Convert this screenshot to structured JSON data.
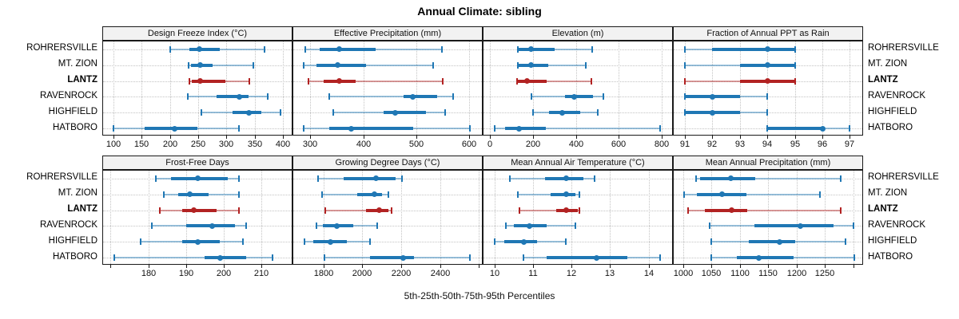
{
  "title": "Annual Climate: sibling",
  "caption": "5th-25th-50th-75th-95th Percentiles",
  "colors": {
    "normal": "#1F77B4",
    "highlight": "#B22222",
    "strip_bg": "#F2F2F2",
    "panel_border": "#1A1A1A",
    "grid": "#C3C3C3"
  },
  "sites": [
    "ROHRERSVILLE",
    "MT. ZION",
    "LANTZ",
    "RAVENROCK",
    "HIGHFIELD",
    "HATBORO"
  ],
  "highlight_site": "LANTZ",
  "chart_data": {
    "type": "dot-interval-trellis",
    "layout": {
      "rows": 2,
      "cols": 4,
      "grid": "dotted",
      "legend": "none"
    },
    "percentiles": [
      5,
      25,
      50,
      75,
      95
    ],
    "categories": [
      "ROHRERSVILLE",
      "MT. ZION",
      "LANTZ",
      "RAVENROCK",
      "HIGHFIELD",
      "HATBORO"
    ],
    "panels": [
      {
        "row": 0,
        "title": "Design Freeze Index (°C)",
        "xlim": [
          82,
          415
        ],
        "ticks": [
          100,
          150,
          200,
          250,
          300,
          350,
          400
        ],
        "tick_labels": [
          "100",
          "150",
          "200",
          "250",
          "300",
          "350",
          "400"
        ],
        "values": [
          [
            200,
            235,
            252,
            288,
            367
          ],
          [
            233,
            237,
            254,
            275,
            347
          ],
          [
            235,
            239,
            253,
            298,
            340
          ],
          [
            232,
            283,
            322,
            339,
            372
          ],
          [
            255,
            311,
            340,
            362,
            395
          ],
          [
            101,
            156,
            208,
            248,
            322
          ]
        ]
      },
      {
        "row": 0,
        "title": "Effective Precipitation (mm)",
        "xlim": [
          268,
          624
        ],
        "ticks": [
          300,
          400,
          500,
          600
        ],
        "tick_labels": [
          "300",
          "400",
          "500",
          "600"
        ],
        "values": [
          [
            290,
            318,
            355,
            423,
            548
          ],
          [
            288,
            311,
            352,
            406,
            532
          ],
          [
            297,
            326,
            355,
            386,
            550
          ],
          [
            336,
            476,
            494,
            539,
            570
          ],
          [
            344,
            438,
            460,
            518,
            555
          ],
          [
            288,
            336,
            377,
            494,
            602
          ]
        ]
      },
      {
        "row": 0,
        "title": "Elevation (m)",
        "xlim": [
          -31,
          848
        ],
        "ticks": [
          0,
          200,
          400,
          600,
          800
        ],
        "tick_labels": [
          "0",
          "200",
          "400",
          "600",
          "800"
        ],
        "values": [
          [
            130,
            134,
            191,
            300,
            477
          ],
          [
            130,
            134,
            191,
            270,
            444
          ],
          [
            124,
            130,
            173,
            263,
            471
          ],
          [
            194,
            350,
            390,
            480,
            529
          ],
          [
            200,
            274,
            337,
            421,
            500
          ],
          [
            20,
            68,
            136,
            258,
            793
          ]
        ]
      },
      {
        "row": 0,
        "title": "Fraction of Annual PPT as Rain",
        "xlim": [
          90.6,
          97.45
        ],
        "ticks": [
          91,
          92,
          93,
          94,
          95,
          96,
          97
        ],
        "tick_labels": [
          "91",
          "92",
          "93",
          "94",
          "95",
          "96",
          "97"
        ],
        "values": [
          [
            91,
            92,
            94,
            95,
            95
          ],
          [
            91,
            93,
            94,
            95,
            95
          ],
          [
            91,
            93,
            94,
            95,
            95
          ],
          [
            91,
            91,
            92,
            93,
            94
          ],
          [
            91,
            91,
            92,
            93,
            94
          ],
          [
            94,
            94,
            96,
            96,
            97
          ]
        ]
      },
      {
        "row": 1,
        "title": "Frost-Free Days",
        "xlim": [
          168,
          218
        ],
        "ticks": [
          170,
          180,
          190,
          200,
          210
        ],
        "tick_labels": [
          "",
          "180",
          "190",
          "200",
          "210"
        ],
        "values": [
          [
            182,
            186,
            193,
            201,
            204
          ],
          [
            184,
            188,
            191,
            196,
            204
          ],
          [
            183,
            189,
            192,
            198,
            204
          ],
          [
            181,
            190,
            197,
            203,
            206
          ],
          [
            178,
            189,
            193,
            199,
            205
          ],
          [
            171,
            195,
            199,
            206,
            213
          ]
        ]
      },
      {
        "row": 1,
        "title": "Growing Degree Days (°C)",
        "xlim": [
          1644,
          2616
        ],
        "ticks": [
          1800,
          2000,
          2200,
          2400,
          2600
        ],
        "tick_labels": [
          "1800",
          "2000",
          "2200",
          "2400",
          ""
        ],
        "values": [
          [
            1771,
            1905,
            2072,
            2170,
            2204
          ],
          [
            1793,
            1973,
            2061,
            2102,
            2136
          ],
          [
            1808,
            2018,
            2085,
            2135,
            2152
          ],
          [
            1762,
            1796,
            1868,
            1953,
            2077
          ],
          [
            1701,
            1749,
            1837,
            1918,
            2041
          ],
          [
            1806,
            2041,
            2211,
            2265,
            2554
          ]
        ]
      },
      {
        "row": 1,
        "title": "Mean Annual Air Temperature (°C)",
        "xlim": [
          9.71,
          14.61
        ],
        "ticks": [
          10,
          11,
          12,
          13,
          14
        ],
        "tick_labels": [
          "10",
          "11",
          "12",
          "13",
          "14"
        ],
        "values": [
          [
            10.4,
            11.3,
            11.85,
            12.3,
            12.6
          ],
          [
            10.6,
            11.45,
            11.85,
            12.1,
            12.2
          ],
          [
            10.65,
            11.6,
            11.85,
            12.15,
            12.2
          ],
          [
            10.3,
            10.5,
            10.9,
            11.35,
            12.1
          ],
          [
            10.0,
            10.25,
            10.75,
            11.1,
            11.85
          ],
          [
            10.75,
            11.35,
            12.65,
            13.45,
            14.3
          ]
        ]
      },
      {
        "row": 1,
        "title": "Mean Annual Precipitation (mm)",
        "xlim": [
          983,
          1316
        ],
        "ticks": [
          1000,
          1050,
          1100,
          1150,
          1200,
          1250,
          1300
        ],
        "tick_labels": [
          "1000",
          "1050",
          "1100",
          "1150",
          "1200",
          "1250",
          ""
        ],
        "values": [
          [
            1022,
            1029,
            1084,
            1127,
            1278
          ],
          [
            1002,
            1024,
            1068,
            1111,
            1241
          ],
          [
            1008,
            1038,
            1086,
            1113,
            1278
          ],
          [
            1047,
            1125,
            1206,
            1265,
            1300
          ],
          [
            1050,
            1115,
            1170,
            1197,
            1286
          ],
          [
            1050,
            1094,
            1133,
            1195,
            1302
          ]
        ]
      }
    ]
  }
}
